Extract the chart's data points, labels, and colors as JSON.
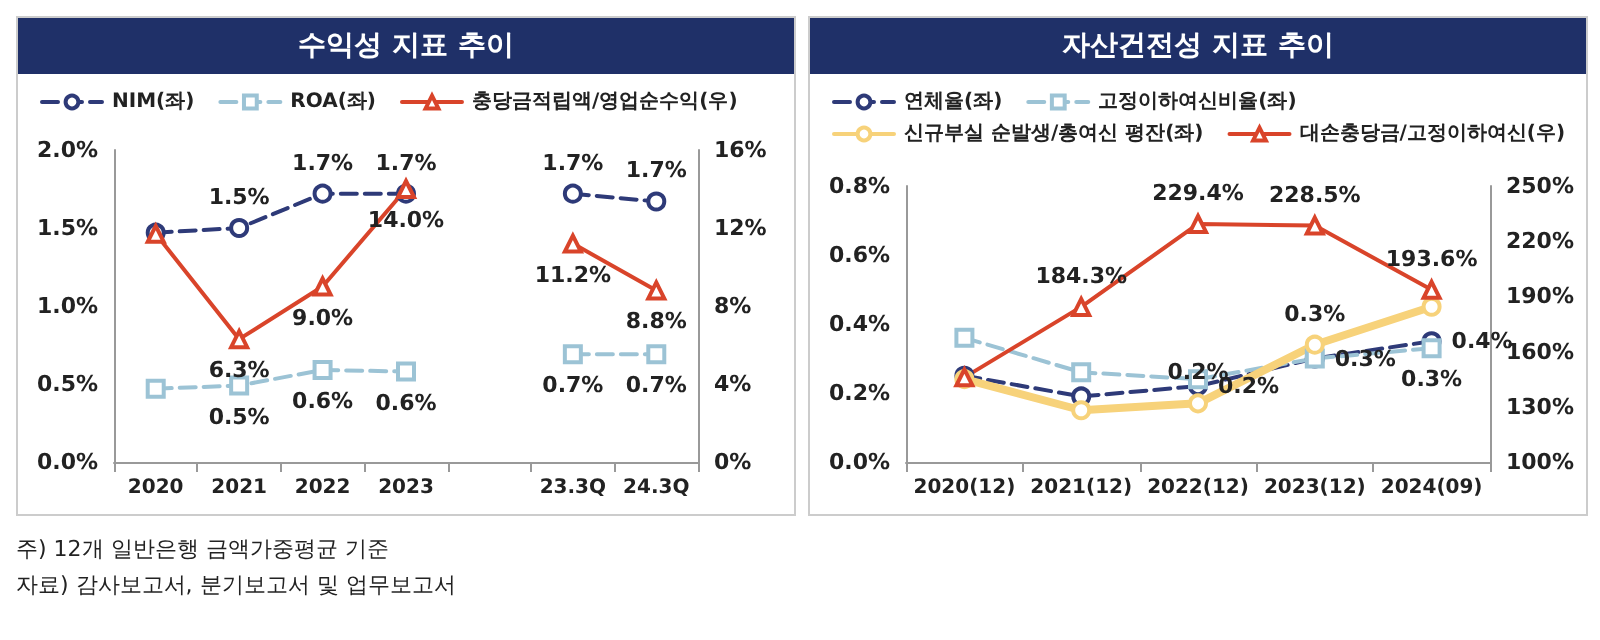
{
  "chart_data": [
    {
      "type": "line",
      "title": "수익성 지표 추이",
      "categories": [
        "2020",
        "2021",
        "2022",
        "2023",
        null,
        "23.3Q",
        "24.3Q"
      ],
      "series": [
        {
          "name": "NIM(좌)",
          "color": "#2e3a78",
          "marker": "circle",
          "line_style": "dashed",
          "values": [
            1.47,
            1.5,
            1.72,
            1.72,
            null,
            1.72,
            1.67
          ],
          "value_labels": [
            null,
            "1.5%",
            "1.7%",
            "1.7%",
            null,
            "1.7%",
            "1.7%"
          ]
        },
        {
          "name": "ROA(좌)",
          "color": "#9cc3d5",
          "marker": "square",
          "line_style": "dashed",
          "values": [
            0.47,
            0.49,
            0.59,
            0.58,
            null,
            0.69,
            0.69
          ],
          "value_labels": [
            null,
            "0.5%",
            "0.6%",
            "0.6%",
            null,
            "0.7%",
            "0.7%"
          ]
        },
        {
          "name": "충당금적립액/영업순수익(우)",
          "color": "#d9442a",
          "marker": "triangle",
          "line_style": "solid",
          "axis": "y2",
          "values": [
            11.7,
            6.3,
            9.0,
            14.0,
            null,
            11.2,
            8.8
          ],
          "value_labels": [
            null,
            "6.3%",
            "9.0%",
            "14.0%",
            null,
            "11.2%",
            "8.8%"
          ]
        }
      ],
      "ylim": [
        0,
        2
      ],
      "yticks": [
        {
          "value": 0,
          "label": "0.0%"
        },
        {
          "value": 0.5,
          "label": "0.5%"
        },
        {
          "value": 1,
          "label": "1.0%"
        },
        {
          "value": 1.5,
          "label": "1.5%"
        },
        {
          "value": 2,
          "label": "2.0%"
        }
      ],
      "y2lim": [
        0,
        16
      ],
      "y2ticks": [
        {
          "value": 0,
          "label": "0%"
        },
        {
          "value": 4,
          "label": "4%"
        },
        {
          "value": 8,
          "label": "8%"
        },
        {
          "value": 12,
          "label": "12%"
        },
        {
          "value": 16,
          "label": "16%"
        }
      ],
      "legend": "top",
      "grid": false,
      "annotations": [
        "주) 12개 일반은행 금액가중평균 기준",
        "자료) 감사보고서, 분기보고서 및 업무보고서"
      ]
    },
    {
      "type": "line",
      "title": "자산건전성 지표 추이",
      "categories": [
        "2020(12)",
        "2021(12)",
        "2022(12)",
        "2023(12)",
        "2024(09)"
      ],
      "series": [
        {
          "name": "연체율(좌)",
          "color": "#2e3a78",
          "marker": "circle",
          "line_style": "dashed",
          "values": [
            0.25,
            0.19,
            0.22,
            0.3,
            0.35
          ],
          "value_labels": [
            null,
            null,
            "0.2%",
            "0.3%",
            "0.4%"
          ]
        },
        {
          "name": "고정이하여신비율(좌)",
          "color": "#9cc3d5",
          "marker": "square",
          "line_style": "dashed",
          "values": [
            0.36,
            0.26,
            0.24,
            0.3,
            0.33
          ],
          "value_labels": [
            null,
            null,
            null,
            null,
            "0.3%"
          ]
        },
        {
          "name": "신규부실 순발생/총여신 평잔(좌)",
          "color": "#f7d27a",
          "marker": "circle",
          "line_style": "solid",
          "values": [
            0.24,
            0.15,
            0.17,
            0.34,
            0.45
          ],
          "value_labels": [
            null,
            null,
            "0.2%",
            "0.3%",
            null
          ]
        },
        {
          "name": "대손충당금/고정이하여신(우)",
          "color": "#d9442a",
          "marker": "triangle",
          "line_style": "solid",
          "axis": "y2",
          "values": [
            146,
            184.3,
            229.4,
            228.5,
            193.6
          ],
          "value_labels": [
            null,
            "184.3%",
            "229.4%",
            "228.5%",
            "193.6%"
          ]
        }
      ],
      "ylim": [
        0,
        0.8
      ],
      "yticks": [
        {
          "value": 0,
          "label": "0.0%"
        },
        {
          "value": 0.2,
          "label": "0.2%"
        },
        {
          "value": 0.4,
          "label": "0.4%"
        },
        {
          "value": 0.6,
          "label": "0.6%"
        },
        {
          "value": 0.8,
          "label": "0.8%"
        }
      ],
      "y2lim": [
        100,
        250
      ],
      "y2ticks": [
        {
          "value": 100,
          "label": "100%"
        },
        {
          "value": 130,
          "label": "130%"
        },
        {
          "value": 160,
          "label": "160%"
        },
        {
          "value": 190,
          "label": "190%"
        },
        {
          "value": 220,
          "label": "220%"
        },
        {
          "value": 250,
          "label": "250%"
        }
      ],
      "legend": "top",
      "grid": false
    }
  ]
}
